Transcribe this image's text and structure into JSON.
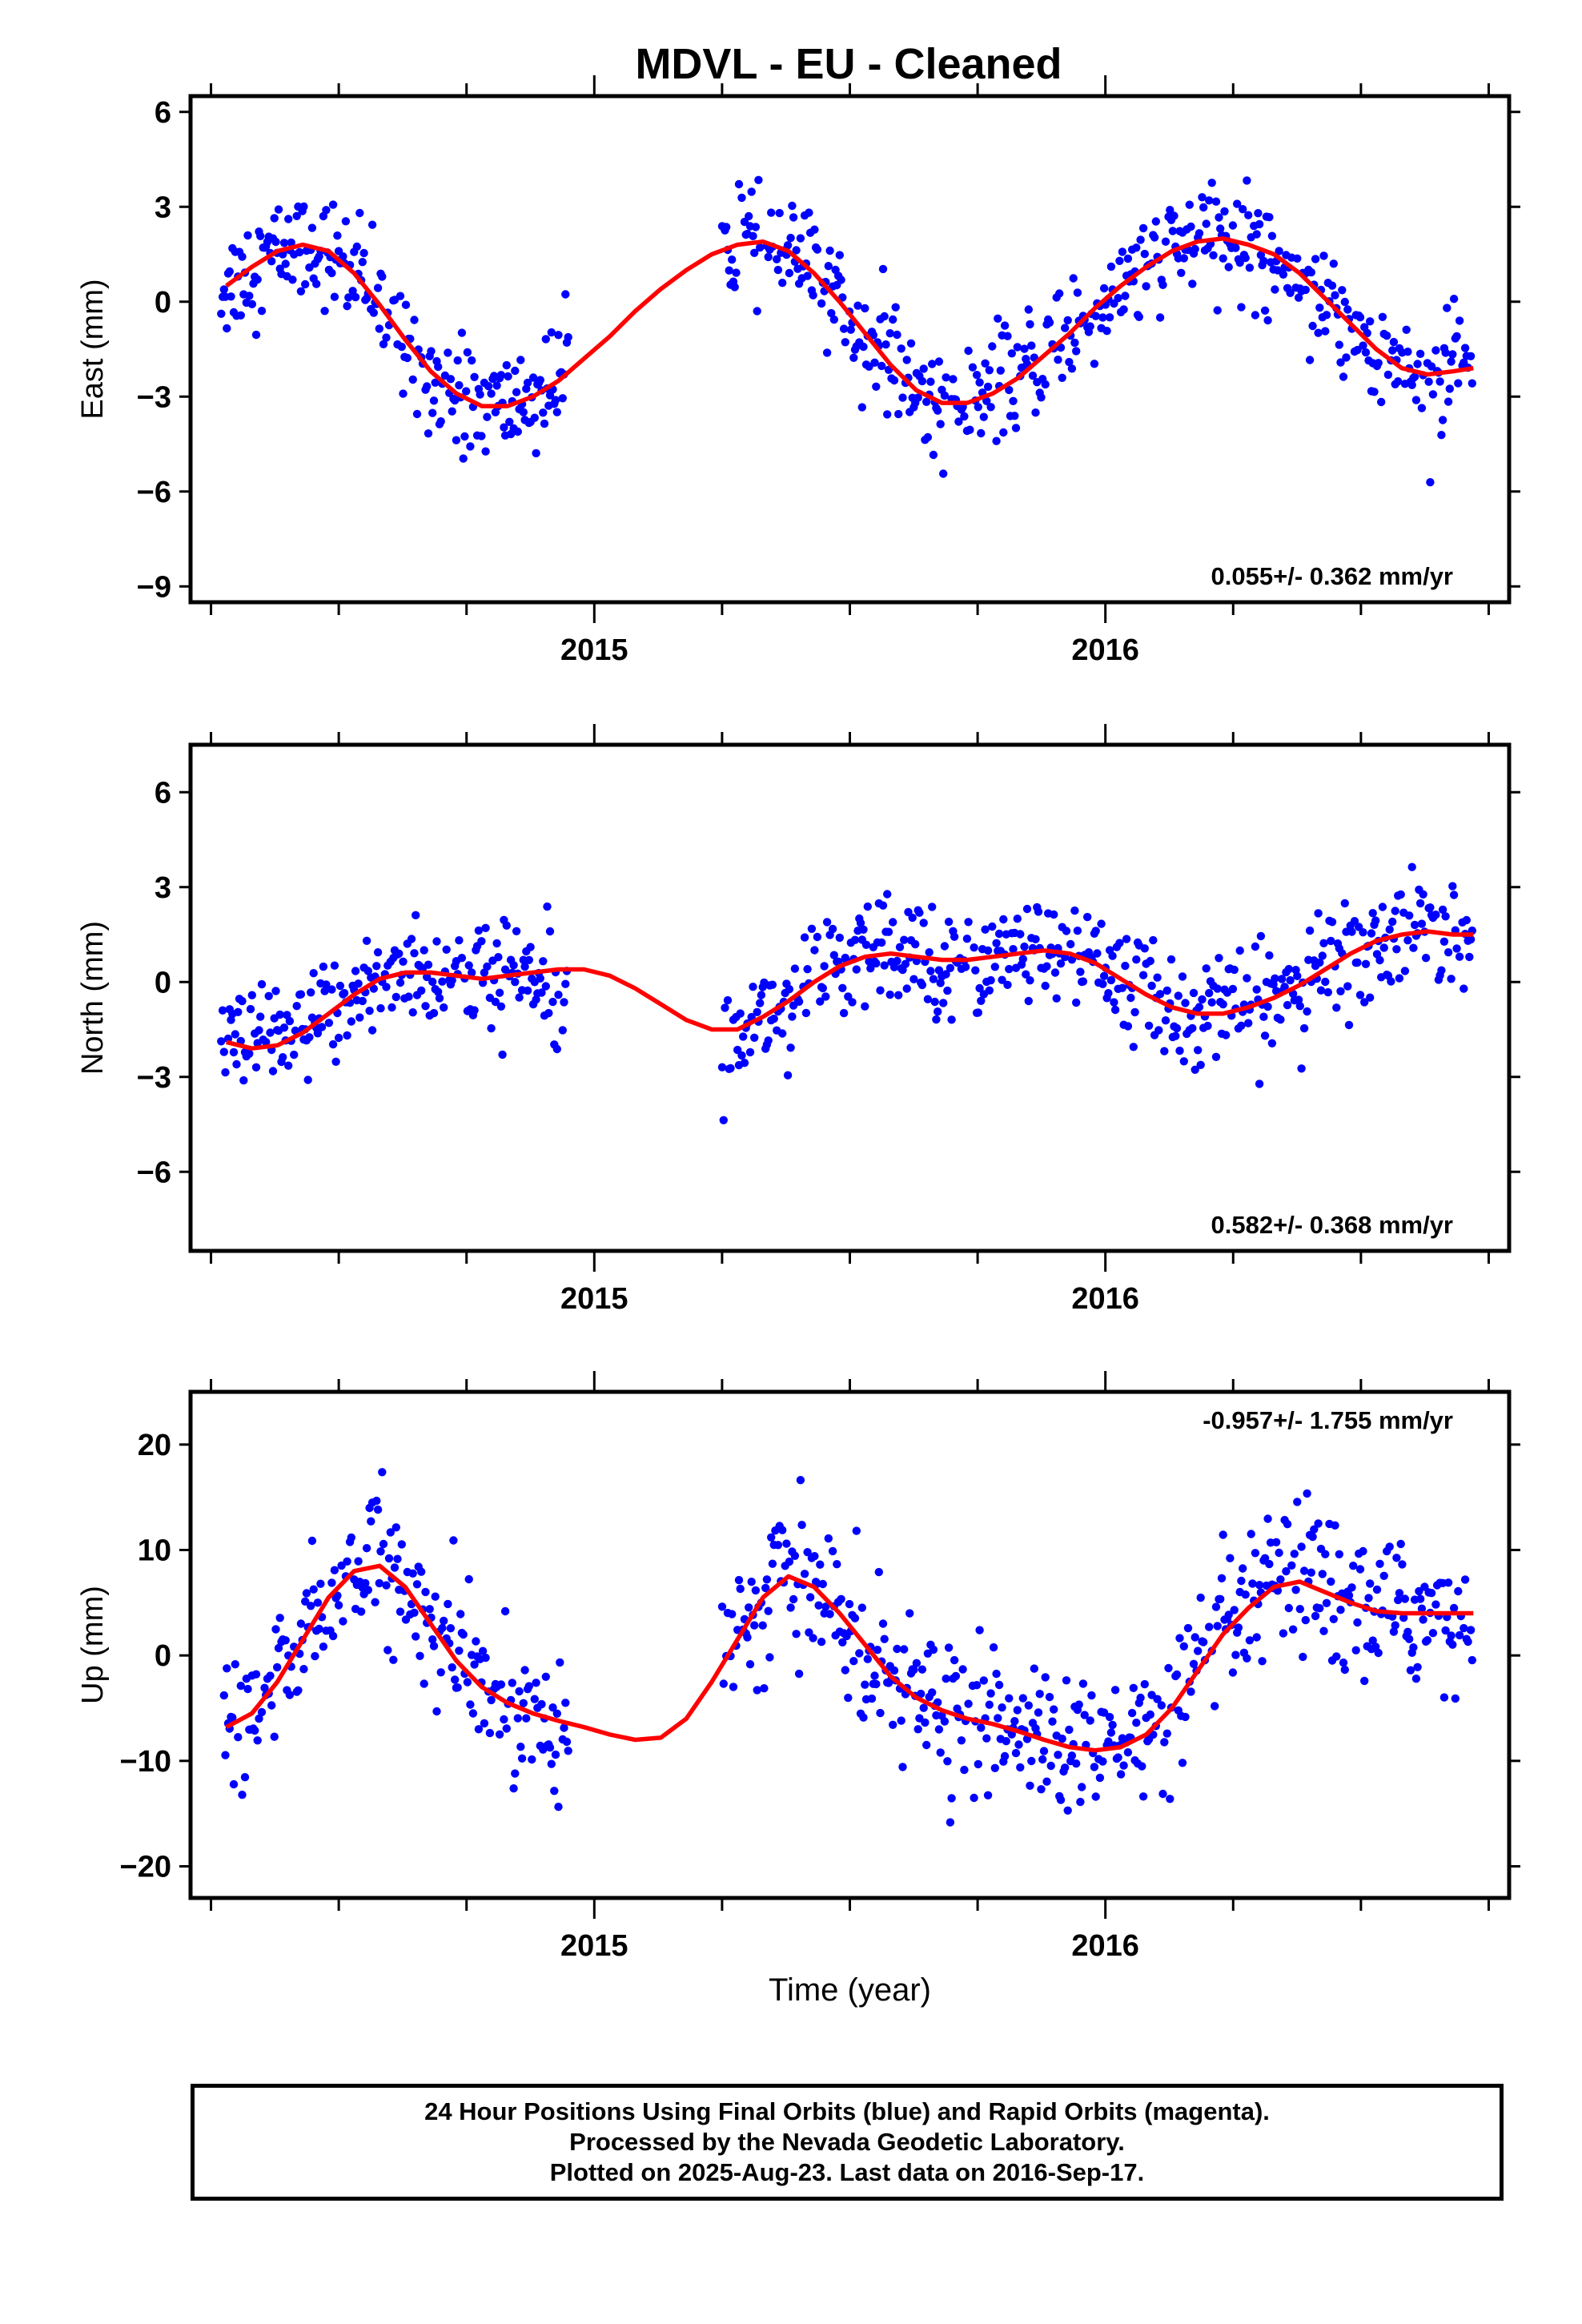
{
  "title": "MDVL  - EU - Cleaned",
  "footer": {
    "line1": "24 Hour Positions Using Final Orbits (blue) and Rapid Orbits (magenta).",
    "line2": "Processed by the Nevada Geodetic Laboratory.",
    "line3": "Plotted on 2025-Aug-23. Last data on 2016-Sep-17."
  },
  "colors": {
    "data": "#0000ff",
    "fit": "#ff0000",
    "axes": "#000000"
  },
  "chart_data": [
    {
      "type": "scatter",
      "name": "east",
      "ylabel": "East (mm)",
      "xlabel": "",
      "xlim": [
        2014.21,
        2016.79
      ],
      "ylim": [
        -9.5,
        6.5
      ],
      "yticks": [
        -9,
        -6,
        -3,
        0,
        3,
        6
      ],
      "xtick_labels": [
        2015,
        2016
      ],
      "rate_text": "0.055+/- 0.362 mm/yr",
      "rate_position": "bottom-right",
      "gaps": [
        [
          2014.95,
          2015.25
        ]
      ],
      "series": [
        {
          "name": "",
          "kind": "fit",
          "x": [
            2014.28,
            2014.33,
            2014.38,
            2014.43,
            2014.48,
            2014.53,
            2014.58,
            2014.63,
            2014.68,
            2014.73,
            2014.78,
            2014.83,
            2014.88,
            2014.93,
            2014.98,
            2015.03,
            2015.08,
            2015.13,
            2015.18,
            2015.23,
            2015.28,
            2015.33,
            2015.38,
            2015.43,
            2015.48,
            2015.53,
            2015.58,
            2015.63,
            2015.68,
            2015.73,
            2015.78,
            2015.83,
            2015.88,
            2015.93,
            2015.98,
            2016.03,
            2016.08,
            2016.13,
            2016.18,
            2016.23,
            2016.28,
            2016.33,
            2016.38,
            2016.43,
            2016.48,
            2016.53,
            2016.58,
            2016.63,
            2016.68,
            2016.72
          ],
          "y": [
            0.5,
            1.1,
            1.6,
            1.8,
            1.6,
            0.9,
            -0.1,
            -1.2,
            -2.2,
            -2.9,
            -3.3,
            -3.3,
            -3.0,
            -2.5,
            -1.8,
            -1.1,
            -0.3,
            0.4,
            1.0,
            1.5,
            1.8,
            1.9,
            1.6,
            0.9,
            0.0,
            -1.0,
            -2.0,
            -2.8,
            -3.2,
            -3.2,
            -2.9,
            -2.4,
            -1.7,
            -1.0,
            -0.2,
            0.5,
            1.1,
            1.6,
            1.9,
            2.0,
            1.8,
            1.5,
            0.9,
            0.1,
            -0.7,
            -1.5,
            -2.1,
            -2.3,
            -2.2,
            -2.1
          ]
        }
      ]
    },
    {
      "type": "scatter",
      "name": "north",
      "ylabel": "North (mm)",
      "xlabel": "",
      "xlim": [
        2014.21,
        2016.79
      ],
      "ylim": [
        -8.5,
        7.5
      ],
      "yticks": [
        -6,
        -3,
        0,
        3,
        6
      ],
      "xtick_labels": [
        2015,
        2016
      ],
      "rate_text": "0.582+/- 0.368 mm/yr",
      "rate_position": "bottom-right",
      "gaps": [
        [
          2014.95,
          2015.25
        ]
      ],
      "series": [
        {
          "name": "",
          "kind": "fit",
          "x": [
            2014.28,
            2014.33,
            2014.38,
            2014.43,
            2014.48,
            2014.53,
            2014.58,
            2014.63,
            2014.68,
            2014.73,
            2014.78,
            2014.83,
            2014.88,
            2014.93,
            2014.98,
            2015.03,
            2015.08,
            2015.13,
            2015.18,
            2015.23,
            2015.28,
            2015.33,
            2015.38,
            2015.43,
            2015.48,
            2015.53,
            2015.58,
            2015.63,
            2015.68,
            2015.73,
            2015.78,
            2015.83,
            2015.88,
            2015.93,
            2015.98,
            2016.03,
            2016.08,
            2016.13,
            2016.18,
            2016.23,
            2016.28,
            2016.33,
            2016.38,
            2016.43,
            2016.48,
            2016.53,
            2016.58,
            2016.63,
            2016.68,
            2016.72
          ],
          "y": [
            -1.9,
            -2.1,
            -2.0,
            -1.6,
            -1.0,
            -0.4,
            0.1,
            0.3,
            0.3,
            0.2,
            0.1,
            0.2,
            0.3,
            0.4,
            0.4,
            0.2,
            -0.2,
            -0.7,
            -1.2,
            -1.5,
            -1.5,
            -1.1,
            -0.6,
            0.0,
            0.5,
            0.8,
            0.9,
            0.8,
            0.7,
            0.7,
            0.8,
            0.9,
            1.0,
            0.9,
            0.6,
            0.1,
            -0.4,
            -0.8,
            -1.0,
            -1.0,
            -0.8,
            -0.5,
            -0.1,
            0.4,
            0.9,
            1.3,
            1.5,
            1.6,
            1.5,
            1.5
          ]
        }
      ]
    },
    {
      "type": "scatter",
      "name": "up",
      "ylabel": "Up (mm)",
      "xlabel": "Time (year)",
      "xlim": [
        2014.21,
        2016.79
      ],
      "ylim": [
        -23,
        25
      ],
      "yticks": [
        -20,
        -10,
        0,
        10,
        20
      ],
      "xtick_labels": [
        2015,
        2016
      ],
      "rate_text": "-0.957+/- 1.755 mm/yr",
      "rate_position": "top-right",
      "gaps": [
        [
          2014.95,
          2015.25
        ]
      ],
      "series": [
        {
          "name": "",
          "kind": "fit",
          "x": [
            2014.28,
            2014.33,
            2014.38,
            2014.43,
            2014.48,
            2014.53,
            2014.58,
            2014.63,
            2014.68,
            2014.73,
            2014.78,
            2014.83,
            2014.88,
            2014.93,
            2014.98,
            2015.03,
            2015.08,
            2015.13,
            2015.18,
            2015.23,
            2015.28,
            2015.33,
            2015.38,
            2015.43,
            2015.48,
            2015.53,
            2015.58,
            2015.63,
            2015.68,
            2015.73,
            2015.78,
            2015.83,
            2015.88,
            2015.93,
            2015.98,
            2016.03,
            2016.08,
            2016.13,
            2016.18,
            2016.23,
            2016.28,
            2016.33,
            2016.38,
            2016.43,
            2016.48,
            2016.53,
            2016.58,
            2016.63,
            2016.68,
            2016.72
          ],
          "y": [
            -6.8,
            -5.5,
            -2.5,
            1.5,
            5.5,
            8.0,
            8.5,
            6.5,
            3.0,
            -0.5,
            -3.0,
            -4.5,
            -5.5,
            -6.2,
            -6.8,
            -7.5,
            -8.0,
            -7.8,
            -6.0,
            -2.5,
            1.5,
            5.5,
            7.5,
            6.5,
            4.0,
            1.0,
            -2.0,
            -4.0,
            -5.2,
            -6.0,
            -6.5,
            -7.2,
            -8.0,
            -8.7,
            -9.0,
            -8.7,
            -7.5,
            -5.0,
            -1.5,
            2.0,
            4.5,
            6.5,
            7.0,
            6.0,
            5.0,
            4.2,
            4.0,
            4.0,
            4.0,
            4.0
          ]
        }
      ]
    }
  ]
}
